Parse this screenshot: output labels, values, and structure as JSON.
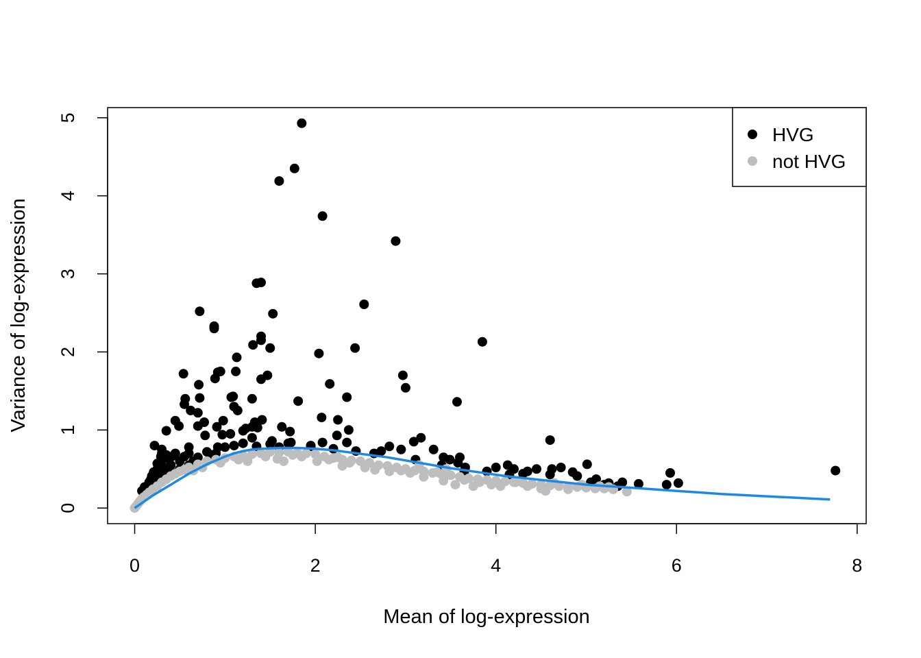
{
  "chart_data": {
    "type": "scatter",
    "title": "",
    "xlabel": "Mean of log-expression",
    "ylabel": "Variance of log-expression",
    "xlim": [
      -0.3,
      8.1
    ],
    "ylim": [
      -0.2,
      5.13
    ],
    "x_ticks": [
      0,
      2,
      4,
      6,
      8
    ],
    "y_ticks": [
      0,
      1,
      2,
      3,
      4,
      5
    ],
    "grid": false,
    "legend": {
      "placement": "top-right",
      "entries": [
        {
          "label": "HVG",
          "color": "#000000"
        },
        {
          "label": "not HVG",
          "color": "#bebebe"
        }
      ]
    },
    "series": [
      {
        "name": "HVG",
        "color": "#000000",
        "points": [
          [
            1.85,
            4.93
          ],
          [
            1.77,
            4.35
          ],
          [
            1.6,
            4.19
          ],
          [
            2.08,
            3.74
          ],
          [
            2.89,
            3.42
          ],
          [
            1.35,
            2.88
          ],
          [
            1.4,
            2.89
          ],
          [
            2.54,
            2.61
          ],
          [
            0.72,
            2.52
          ],
          [
            1.53,
            2.49
          ],
          [
            0.88,
            2.33
          ],
          [
            0.88,
            2.3
          ],
          [
            1.4,
            2.2
          ],
          [
            1.4,
            2.15
          ],
          [
            1.31,
            2.09
          ],
          [
            3.85,
            2.13
          ],
          [
            2.44,
            2.05
          ],
          [
            1.5,
            2.05
          ],
          [
            2.04,
            1.98
          ],
          [
            1.13,
            1.93
          ],
          [
            1.12,
            1.75
          ],
          [
            0.95,
            1.75
          ],
          [
            0.92,
            1.74
          ],
          [
            0.54,
            1.72
          ],
          [
            1.47,
            1.7
          ],
          [
            2.97,
            1.7
          ],
          [
            1.4,
            1.65
          ],
          [
            0.89,
            1.66
          ],
          [
            0.71,
            1.58
          ],
          [
            2.16,
            1.59
          ],
          [
            3.0,
            1.54
          ],
          [
            1.09,
            1.43
          ],
          [
            1.07,
            1.42
          ],
          [
            1.3,
            1.4
          ],
          [
            0.56,
            1.4
          ],
          [
            0.72,
            1.41
          ],
          [
            2.35,
            1.42
          ],
          [
            3.57,
            1.36
          ],
          [
            1.81,
            1.37
          ],
          [
            0.55,
            1.33
          ],
          [
            1.1,
            1.3
          ],
          [
            1.14,
            1.25
          ],
          [
            0.62,
            1.25
          ],
          [
            0.7,
            1.22
          ],
          [
            2.07,
            1.16
          ],
          [
            2.25,
            1.13
          ],
          [
            1.41,
            1.13
          ],
          [
            0.98,
            1.12
          ],
          [
            1.33,
            1.1
          ],
          [
            0.45,
            1.12
          ],
          [
            0.49,
            1.05
          ],
          [
            0.77,
            1.1
          ],
          [
            1.63,
            1.04
          ],
          [
            1.3,
            1.04
          ],
          [
            1.23,
            1.02
          ],
          [
            0.91,
            1.04
          ],
          [
            0.7,
            1.05
          ],
          [
            1.36,
            1.03
          ],
          [
            0.35,
            0.99
          ],
          [
            1.2,
            0.99
          ],
          [
            1.72,
            0.98
          ],
          [
            2.37,
            1.0
          ],
          [
            2.24,
            0.93
          ],
          [
            1.06,
            0.95
          ],
          [
            0.97,
            0.94
          ],
          [
            0.78,
            0.93
          ],
          [
            1.3,
            0.9
          ],
          [
            3.17,
            0.9
          ],
          [
            3.09,
            0.85
          ],
          [
            1.52,
            0.86
          ],
          [
            1.73,
            0.84
          ],
          [
            2.08,
            0.84
          ],
          [
            2.35,
            0.84
          ],
          [
            4.6,
            0.87
          ],
          [
            1.95,
            0.8
          ],
          [
            0.22,
            0.8
          ],
          [
            2.82,
            0.79
          ],
          [
            0.6,
            0.78
          ],
          [
            0.92,
            0.78
          ],
          [
            2.95,
            0.75
          ],
          [
            2.73,
            0.73
          ],
          [
            3.31,
            0.75
          ],
          [
            0.3,
            0.75
          ],
          [
            0.3,
            0.7
          ],
          [
            0.29,
            0.66
          ],
          [
            0.35,
            0.68
          ],
          [
            0.41,
            0.66
          ],
          [
            0.38,
            0.63
          ],
          [
            0.29,
            0.6
          ],
          [
            0.25,
            0.57
          ],
          [
            0.3,
            0.55
          ],
          [
            0.25,
            0.5
          ],
          [
            0.21,
            0.46
          ],
          [
            0.19,
            0.41
          ],
          [
            0.18,
            0.37
          ],
          [
            0.16,
            0.33
          ],
          [
            0.11,
            0.27
          ],
          [
            0.08,
            0.22
          ],
          [
            3.11,
            0.62
          ],
          [
            3.42,
            0.65
          ],
          [
            3.6,
            0.65
          ],
          [
            3.49,
            0.62
          ],
          [
            3.58,
            0.58
          ],
          [
            3.4,
            0.55
          ],
          [
            3.66,
            0.52
          ],
          [
            3.65,
            0.47
          ],
          [
            4.13,
            0.55
          ],
          [
            4.2,
            0.5
          ],
          [
            4.35,
            0.47
          ],
          [
            4.45,
            0.5
          ],
          [
            4.62,
            0.5
          ],
          [
            4.72,
            0.52
          ],
          [
            4.85,
            0.46
          ],
          [
            4.9,
            0.41
          ],
          [
            5.01,
            0.56
          ],
          [
            5.11,
            0.37
          ],
          [
            5.05,
            0.33
          ],
          [
            5.25,
            0.32
          ],
          [
            5.4,
            0.33
          ],
          [
            5.58,
            0.31
          ],
          [
            5.93,
            0.45
          ],
          [
            5.89,
            0.3
          ],
          [
            6.02,
            0.32
          ],
          [
            7.76,
            0.48
          ],
          [
            4.6,
            0.43
          ],
          [
            4.3,
            0.44
          ],
          [
            3.9,
            0.47
          ],
          [
            4.0,
            0.52
          ],
          [
            4.15,
            0.43
          ],
          [
            5.2,
            0.3
          ],
          [
            5.35,
            0.28
          ],
          [
            0.5,
            0.6
          ],
          [
            0.6,
            0.7
          ],
          [
            0.8,
            0.72
          ],
          [
            1.0,
            0.78
          ],
          [
            1.2,
            0.83
          ],
          [
            1.5,
            0.82
          ],
          [
            1.7,
            0.83
          ],
          [
            0.45,
            0.7
          ],
          [
            0.55,
            0.66
          ],
          [
            0.7,
            0.65
          ],
          [
            0.9,
            0.7
          ],
          [
            0.4,
            0.55
          ],
          [
            0.33,
            0.5
          ],
          [
            0.27,
            0.42
          ],
          [
            0.23,
            0.35
          ],
          [
            0.5,
            0.5
          ],
          [
            0.65,
            0.6
          ],
          [
            0.85,
            0.68
          ],
          [
            1.1,
            0.8
          ],
          [
            1.35,
            0.79
          ],
          [
            1.6,
            0.78
          ],
          [
            1.95,
            0.79
          ],
          [
            2.2,
            0.76
          ],
          [
            2.45,
            0.73
          ],
          [
            2.65,
            0.7
          ],
          [
            0.42,
            0.45
          ],
          [
            0.36,
            0.42
          ],
          [
            0.6,
            0.55
          ]
        ]
      },
      {
        "name": "not HVG",
        "color": "#bebebe",
        "points": [
          [
            0.0,
            0.0
          ],
          [
            0.02,
            0.03
          ],
          [
            0.04,
            0.06
          ],
          [
            0.06,
            0.09
          ],
          [
            0.08,
            0.12
          ],
          [
            0.1,
            0.14
          ],
          [
            0.13,
            0.17
          ],
          [
            0.16,
            0.2
          ],
          [
            0.2,
            0.24
          ],
          [
            0.25,
            0.28
          ],
          [
            0.3,
            0.33
          ],
          [
            0.35,
            0.37
          ],
          [
            0.4,
            0.41
          ],
          [
            0.45,
            0.44
          ],
          [
            0.5,
            0.47
          ],
          [
            0.55,
            0.49
          ],
          [
            0.6,
            0.52
          ],
          [
            0.7,
            0.56
          ],
          [
            0.8,
            0.6
          ],
          [
            0.9,
            0.62
          ],
          [
            1.0,
            0.64
          ],
          [
            1.1,
            0.66
          ],
          [
            1.2,
            0.67
          ],
          [
            1.3,
            0.69
          ],
          [
            1.4,
            0.7
          ],
          [
            1.5,
            0.72
          ],
          [
            1.6,
            0.71
          ],
          [
            1.7,
            0.72
          ],
          [
            1.8,
            0.71
          ],
          [
            1.9,
            0.7
          ],
          [
            2.0,
            0.69
          ],
          [
            2.1,
            0.66
          ],
          [
            2.2,
            0.64
          ],
          [
            2.3,
            0.62
          ],
          [
            2.4,
            0.61
          ],
          [
            2.5,
            0.6
          ],
          [
            2.6,
            0.58
          ],
          [
            2.7,
            0.55
          ],
          [
            2.8,
            0.54
          ],
          [
            2.9,
            0.52
          ],
          [
            3.0,
            0.5
          ],
          [
            3.1,
            0.48
          ],
          [
            3.2,
            0.47
          ],
          [
            3.3,
            0.45
          ],
          [
            3.4,
            0.43
          ],
          [
            3.5,
            0.42
          ],
          [
            3.6,
            0.4
          ],
          [
            3.7,
            0.38
          ],
          [
            3.8,
            0.37
          ],
          [
            3.9,
            0.36
          ],
          [
            4.0,
            0.35
          ],
          [
            4.1,
            0.34
          ],
          [
            4.2,
            0.33
          ],
          [
            4.3,
            0.32
          ],
          [
            4.4,
            0.31
          ],
          [
            4.5,
            0.3
          ],
          [
            4.6,
            0.29
          ],
          [
            4.7,
            0.28
          ],
          [
            4.8,
            0.27
          ],
          [
            4.9,
            0.27
          ],
          [
            5.0,
            0.26
          ],
          [
            5.1,
            0.25
          ],
          [
            5.2,
            0.25
          ],
          [
            5.3,
            0.24
          ],
          [
            5.45,
            0.21
          ],
          [
            1.58,
            0.63
          ],
          [
            1.65,
            0.6
          ],
          [
            2.02,
            0.6
          ],
          [
            2.3,
            0.54
          ],
          [
            2.38,
            0.58
          ],
          [
            2.66,
            0.49
          ],
          [
            2.82,
            0.47
          ],
          [
            3.05,
            0.45
          ],
          [
            3.35,
            0.46
          ],
          [
            3.42,
            0.35
          ],
          [
            3.55,
            0.3
          ],
          [
            3.75,
            0.28
          ],
          [
            3.95,
            0.3
          ],
          [
            4.05,
            0.28
          ],
          [
            4.22,
            0.33
          ],
          [
            4.5,
            0.25
          ],
          [
            4.55,
            0.22
          ],
          [
            4.8,
            0.24
          ],
          [
            3.82,
            0.33
          ],
          [
            3.2,
            0.4
          ],
          [
            2.95,
            0.48
          ],
          [
            1.15,
            0.62
          ],
          [
            1.25,
            0.6
          ],
          [
            0.95,
            0.58
          ],
          [
            0.75,
            0.52
          ],
          [
            0.65,
            0.48
          ],
          [
            1.45,
            0.66
          ],
          [
            1.75,
            0.68
          ],
          [
            1.85,
            0.66
          ],
          [
            2.15,
            0.62
          ],
          [
            2.25,
            0.65
          ],
          [
            2.55,
            0.52
          ],
          [
            3.65,
            0.36
          ],
          [
            4.35,
            0.28
          ],
          [
            4.65,
            0.32
          ],
          [
            4.95,
            0.3
          ],
          [
            5.15,
            0.28
          ],
          [
            5.25,
            0.27
          ],
          [
            3.15,
            0.55
          ],
          [
            3.45,
            0.5
          ]
        ]
      }
    ],
    "trend": {
      "name": "",
      "color": "#1e88e5",
      "points": [
        [
          0.0,
          0.0
        ],
        [
          0.1,
          0.08
        ],
        [
          0.2,
          0.16
        ],
        [
          0.3,
          0.23
        ],
        [
          0.4,
          0.3
        ],
        [
          0.5,
          0.37
        ],
        [
          0.6,
          0.44
        ],
        [
          0.7,
          0.5
        ],
        [
          0.8,
          0.56
        ],
        [
          0.9,
          0.61
        ],
        [
          1.0,
          0.66
        ],
        [
          1.1,
          0.7
        ],
        [
          1.2,
          0.73
        ],
        [
          1.3,
          0.75
        ],
        [
          1.4,
          0.76
        ],
        [
          1.6,
          0.77
        ],
        [
          1.8,
          0.77
        ],
        [
          2.0,
          0.76
        ],
        [
          2.2,
          0.74
        ],
        [
          2.4,
          0.71
        ],
        [
          2.6,
          0.68
        ],
        [
          2.8,
          0.65
        ],
        [
          3.0,
          0.61
        ],
        [
          3.2,
          0.57
        ],
        [
          3.5,
          0.51
        ],
        [
          3.8,
          0.46
        ],
        [
          4.1,
          0.41
        ],
        [
          4.5,
          0.36
        ],
        [
          5.0,
          0.3
        ],
        [
          5.5,
          0.26
        ],
        [
          6.0,
          0.22
        ],
        [
          6.5,
          0.18
        ],
        [
          7.0,
          0.15
        ],
        [
          7.7,
          0.11
        ]
      ]
    }
  }
}
